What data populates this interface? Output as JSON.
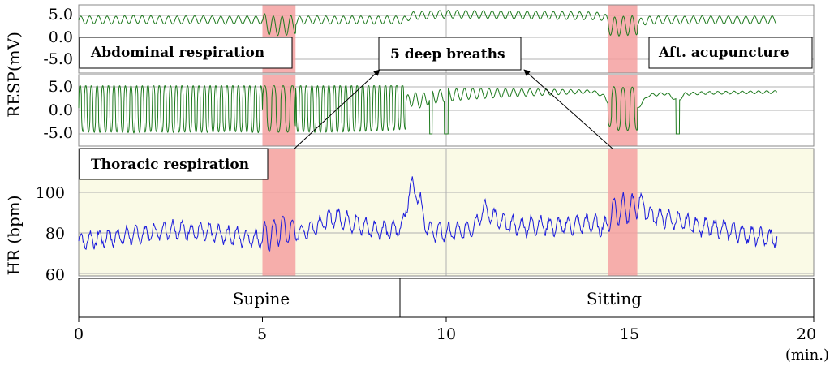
{
  "chart_data": [
    {
      "type": "line",
      "panel": "abdominal respiration",
      "ylabel": "RESP(mV)",
      "x_unit": "(min.)",
      "xlim": [
        0,
        20
      ],
      "y_ticks": [
        "5.0",
        "0.0",
        "-5.0"
      ],
      "y_tick_values": [
        5,
        0,
        -5
      ],
      "ylim": [
        -9,
        10
      ],
      "series": [
        {
          "color": "#1e7a1e",
          "x": [
            0,
            0.5,
            1,
            1.5,
            2,
            2.5,
            3,
            3.5,
            4,
            4.5,
            5,
            5.2,
            5.5,
            5.8,
            6,
            6.5,
            7,
            7.5,
            8,
            8.5,
            8.9,
            9,
            9.5,
            10,
            11,
            12,
            13,
            14,
            14.3,
            14.5,
            14.8,
            15.2,
            15.5,
            16,
            16.5,
            17,
            18,
            19
          ],
          "y": [
            4.2,
            4.3,
            4.2,
            4.4,
            4.3,
            4.2,
            4.3,
            4.3,
            4.2,
            4.3,
            4.2,
            3.5,
            3.4,
            3.6,
            4.2,
            4.3,
            4.2,
            4.3,
            4.2,
            4.3,
            4.2,
            5.2,
            5.4,
            5.6,
            5.5,
            5.4,
            5.3,
            5.2,
            5.0,
            3.2,
            3.4,
            3.6,
            4.2,
            4.3,
            4.2,
            4.3,
            4.2,
            4.3
          ]
        }
      ],
      "label": "Abdominal respiration"
    },
    {
      "type": "line",
      "panel": "thoracic respiration",
      "ylabel": "RESP(mV)",
      "y_ticks": [
        "5.0",
        "0.0",
        "-5.0"
      ],
      "y_tick_values": [
        5,
        0,
        -5
      ],
      "ylim": [
        -8,
        8
      ],
      "series": [
        {
          "color": "#1e7a1e",
          "x": [
            0,
            0.5,
            1,
            1.5,
            2,
            2.5,
            3,
            3.5,
            4,
            4.5,
            5,
            5.2,
            5.5,
            5.8,
            6,
            6.5,
            7,
            7.5,
            8,
            8.5,
            8.9,
            9,
            9.3,
            9.6,
            10,
            10.5,
            11,
            12,
            13,
            14,
            14.3,
            14.5,
            14.8,
            15.2,
            15.5,
            16,
            16.3,
            16.5,
            17,
            18,
            19
          ],
          "y": [
            0.5,
            0.3,
            0.4,
            0.2,
            0.5,
            0.3,
            0.4,
            0.3,
            0.5,
            0.4,
            0.2,
            0.5,
            0.3,
            0.4,
            0.5,
            0.3,
            0.4,
            0.5,
            0.6,
            0.8,
            1.0,
            2.5,
            2.0,
            2.8,
            3.2,
            3.5,
            3.6,
            3.8,
            3.9,
            4.0,
            3.0,
            0.5,
            0.3,
            0.4,
            3.2,
            3.6,
            2.0,
            3.5,
            3.7,
            3.8,
            3.9
          ]
        }
      ],
      "label": "Thoracic respiration"
    },
    {
      "type": "line",
      "panel": "heart rate",
      "ylabel": "HR (bpm)",
      "x_unit": "(min.)",
      "xlim": [
        0,
        20
      ],
      "x_ticks": [
        0,
        5,
        10,
        15,
        20
      ],
      "y_ticks": [
        60,
        80,
        100
      ],
      "ylim": [
        60,
        120
      ],
      "series": [
        {
          "color": "#1a1adc",
          "x": [
            0,
            0.5,
            1,
            1.5,
            2,
            2.5,
            3,
            3.5,
            4,
            4.5,
            5,
            5.3,
            5.6,
            5.9,
            6.2,
            6.5,
            7,
            7.3,
            7.6,
            8,
            8.5,
            8.8,
            9,
            9.1,
            9.3,
            9.5,
            10,
            10.5,
            10.8,
            11,
            11.5,
            12,
            12.5,
            13,
            13.5,
            14,
            14.3,
            14.5,
            14.8,
            15,
            15.3,
            15.5,
            16,
            16.5,
            17,
            17.5,
            18,
            18.5,
            19
          ],
          "y": [
            76,
            77,
            78,
            79,
            80,
            82,
            81,
            80,
            79,
            78,
            77,
            80,
            82,
            80,
            81,
            84,
            88,
            86,
            84,
            82,
            81,
            83,
            100,
            104,
            95,
            81,
            80,
            81,
            84,
            92,
            85,
            83,
            84,
            83,
            84,
            85,
            82,
            90,
            92,
            91,
            96,
            89,
            87,
            85,
            83,
            82,
            80,
            78,
            77
          ]
        }
      ],
      "label": "Thoracic respiration"
    }
  ],
  "xlabel_unit": "(min.)",
  "x_tick_labels": [
    "0",
    "5",
    "10",
    "15",
    "20"
  ],
  "y_tick_labels_resp": [
    "5.0",
    "0.0",
    "-5.0"
  ],
  "y_tick_labels_hr": [
    "100",
    "80",
    "60"
  ],
  "ylabel_resp": "RESP(mV)",
  "ylabel_hr": "HR (bpm)",
  "annotations": {
    "abdominal": "Abdominal respiration",
    "thoracic": "Thoracic respiration",
    "deep_breaths": "5 deep breaths",
    "acupuncture": "Aft. acupuncture"
  },
  "phases": {
    "supine": "Supine",
    "sitting": "Sitting",
    "supine_range": [
      0,
      8.8
    ],
    "sitting_range": [
      8.8,
      20
    ]
  },
  "highlight_intervals": [
    [
      5.0,
      5.9
    ],
    [
      14.4,
      15.2
    ]
  ],
  "colors": {
    "resp": "#1e7a1e",
    "hr": "#1a1adc",
    "highlight": "#f4a0a0",
    "hr_background": "#fafae6",
    "grid": "#b0b0b0"
  }
}
